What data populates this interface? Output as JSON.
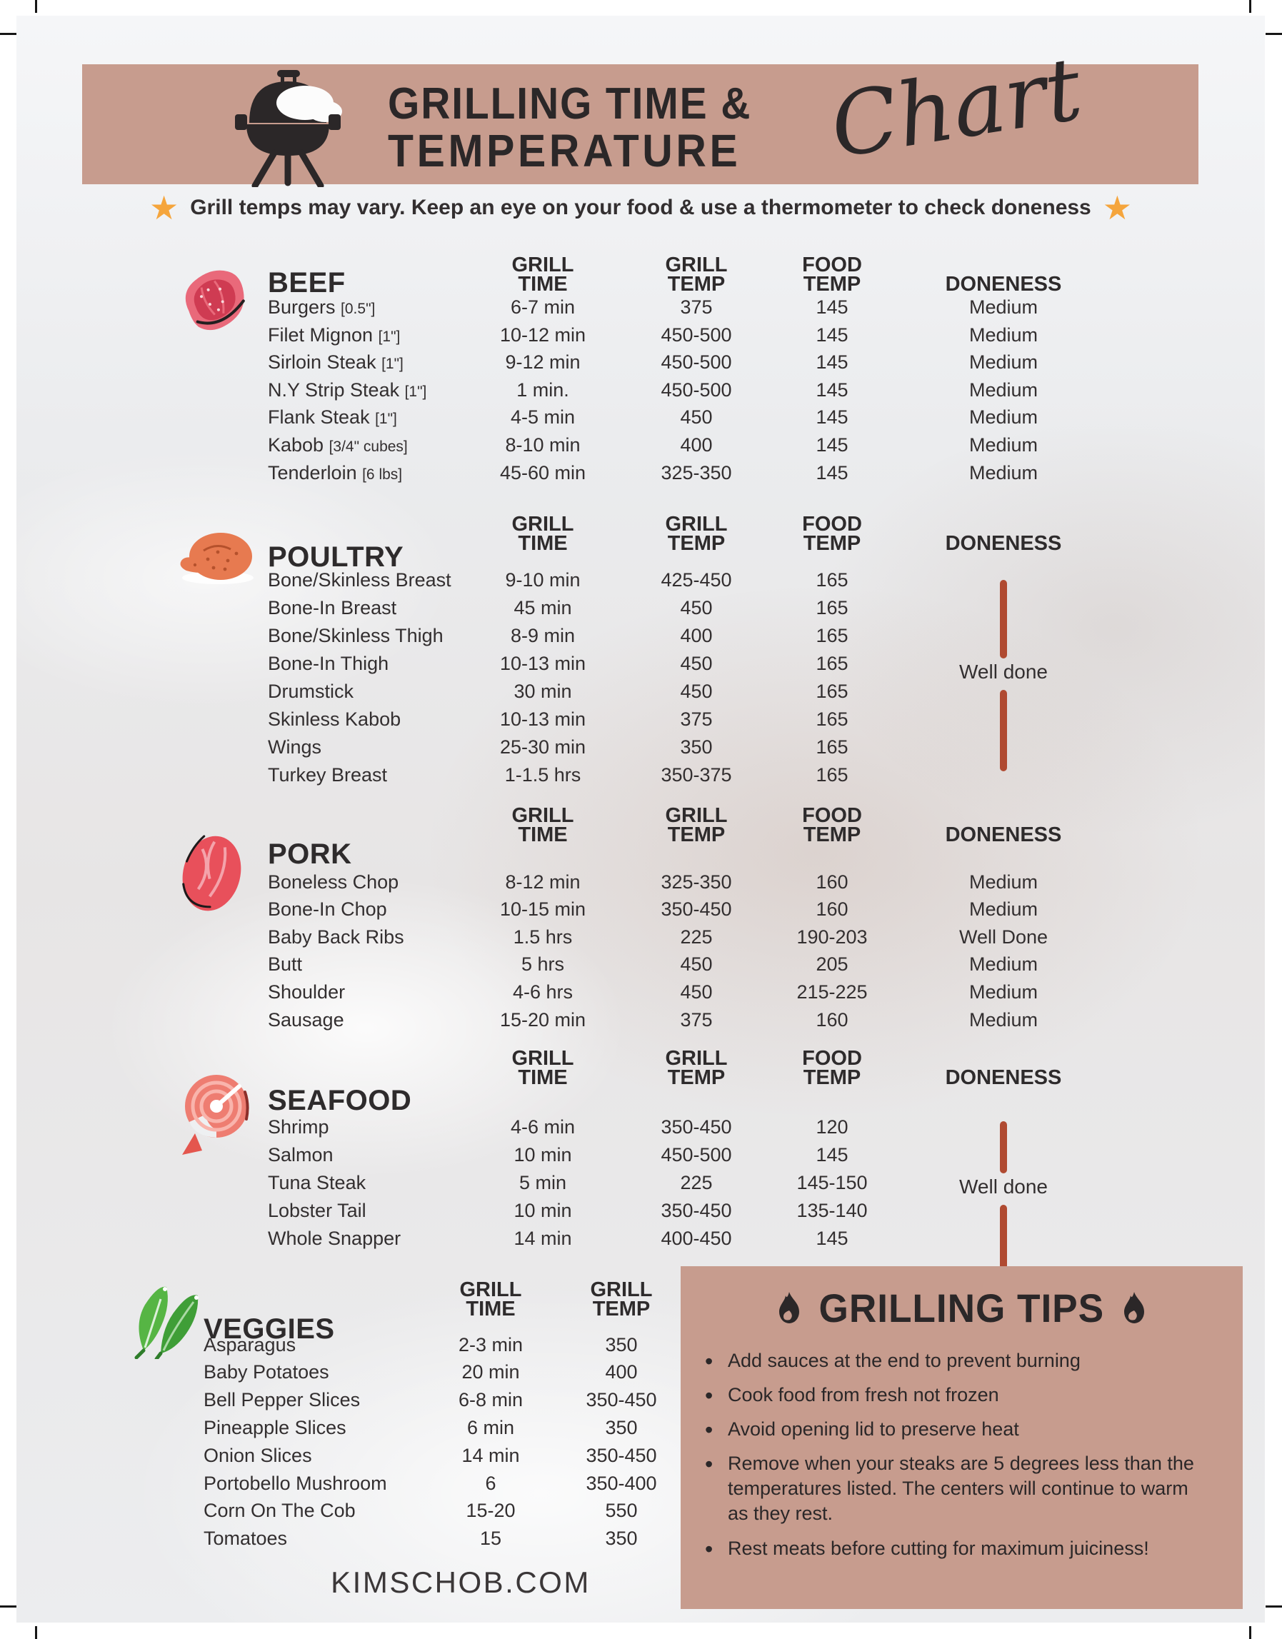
{
  "page": {
    "title_line1": "GRILLING TIME &",
    "title_line2": "TEMPERATURE",
    "title_script": "Chart",
    "notice": "Grill temps may vary. Keep an eye on your food & use a thermometer to check doneness",
    "footer": "KIMSCHOB.COM"
  },
  "sections": [
    {
      "id": "beef",
      "title": "BEEF",
      "icon": "beef-steak-icon",
      "columns": [
        "GRILL TIME",
        "GRILL TEMP",
        "FOOD TEMP",
        "DONENESS"
      ],
      "rows": [
        {
          "name": "Burgers",
          "size": "[0.5\"]",
          "values": [
            "6-7 min",
            "375",
            "145",
            "Medium"
          ]
        },
        {
          "name": "Filet Mignon",
          "size": "[1\"]",
          "values": [
            "10-12 min",
            "450-500",
            "145",
            "Medium"
          ]
        },
        {
          "name": "Sirloin Steak",
          "size": "[1\"]",
          "values": [
            "9-12 min",
            "450-500",
            "145",
            "Medium"
          ]
        },
        {
          "name": "N.Y Strip Steak",
          "size": "[1\"]",
          "values": [
            "1 min.",
            "450-500",
            "145",
            "Medium"
          ]
        },
        {
          "name": "Flank Steak",
          "size": "[1\"]",
          "values": [
            "4-5 min",
            "450",
            "145",
            "Medium"
          ]
        },
        {
          "name": "Kabob",
          "size": "[3/4\" cubes]",
          "values": [
            "8-10 min",
            "400",
            "145",
            "Medium"
          ]
        },
        {
          "name": "Tenderloin",
          "size": "[6 lbs]",
          "values": [
            "45-60 min",
            "325-350",
            "145",
            "Medium"
          ]
        }
      ]
    },
    {
      "id": "poultry",
      "title": "POULTRY",
      "icon": "poultry-icon",
      "columns": [
        "GRILL TIME",
        "GRILL TEMP",
        "FOOD TEMP",
        "DONENESS"
      ],
      "shared_doneness": "Well done",
      "rows": [
        {
          "name": "Bone/Skinless Breast",
          "values": [
            "9-10 min",
            "425-450",
            "165"
          ]
        },
        {
          "name": "Bone-In Breast",
          "values": [
            "45 min",
            "450",
            "165"
          ]
        },
        {
          "name": "Bone/Skinless Thigh",
          "values": [
            "8-9 min",
            "400",
            "165"
          ]
        },
        {
          "name": "Bone-In Thigh",
          "values": [
            "10-13 min",
            "450",
            "165"
          ]
        },
        {
          "name": "Drumstick",
          "values": [
            "30 min",
            "450",
            "165"
          ]
        },
        {
          "name": "Skinless Kabob",
          "values": [
            "10-13 min",
            "375",
            "165"
          ]
        },
        {
          "name": "Wings",
          "values": [
            "25-30 min",
            "350",
            "165"
          ]
        },
        {
          "name": "Turkey Breast",
          "values": [
            "1-1.5 hrs",
            "350-375",
            "165"
          ]
        }
      ]
    },
    {
      "id": "pork",
      "title": "PORK",
      "icon": "pork-icon",
      "columns": [
        "GRILL TIME",
        "GRILL TEMP",
        "FOOD TEMP",
        "DONENESS"
      ],
      "rows": [
        {
          "name": "Boneless Chop",
          "values": [
            "8-12 min",
            "325-350",
            "160",
            "Medium"
          ]
        },
        {
          "name": "Bone-In Chop",
          "values": [
            "10-15 min",
            "350-450",
            "160",
            "Medium"
          ]
        },
        {
          "name": "Baby Back Ribs",
          "values": [
            "1.5 hrs",
            "225",
            "190-203",
            "Well Done"
          ]
        },
        {
          "name": "Butt",
          "values": [
            "5 hrs",
            "450",
            "205",
            "Medium"
          ]
        },
        {
          "name": "Shoulder",
          "values": [
            "4-6 hrs",
            "450",
            "215-225",
            "Medium"
          ]
        },
        {
          "name": "Sausage",
          "values": [
            "15-20 min",
            "375",
            "160",
            "Medium"
          ]
        }
      ]
    },
    {
      "id": "seafood",
      "title": "SEAFOOD",
      "icon": "seafood-icon",
      "columns": [
        "GRILL TIME",
        "GRILL TEMP",
        "FOOD TEMP",
        "DONENESS"
      ],
      "shared_doneness": "Well done",
      "rows": [
        {
          "name": "Shrimp",
          "values": [
            "4-6 min",
            "350-450",
            "120"
          ]
        },
        {
          "name": "Salmon",
          "values": [
            "10 min",
            "450-500",
            "145"
          ]
        },
        {
          "name": "Tuna Steak",
          "values": [
            "5 min",
            "225",
            "145-150"
          ]
        },
        {
          "name": "Lobster Tail",
          "values": [
            "10 min",
            "350-450",
            "135-140"
          ]
        },
        {
          "name": "Whole Snapper",
          "values": [
            "14 min",
            "400-450",
            "145"
          ]
        }
      ]
    },
    {
      "id": "veggies",
      "title": "VEGGIES",
      "icon": "veggies-icon",
      "columns": [
        "GRILL TIME",
        "GRILL TEMP"
      ],
      "rows": [
        {
          "name": "Asparagus",
          "values": [
            "2-3 min",
            "350"
          ]
        },
        {
          "name": "Baby Potatoes",
          "values": [
            "20 min",
            "400"
          ]
        },
        {
          "name": "Bell Pepper Slices",
          "values": [
            "6-8 min",
            "350-450"
          ]
        },
        {
          "name": "Pineapple Slices",
          "values": [
            "6 min",
            "350"
          ]
        },
        {
          "name": "Onion Slices",
          "values": [
            "14 min",
            "350-450"
          ]
        },
        {
          "name": "Portobello Mushroom",
          "values": [
            "6",
            "350-400"
          ]
        },
        {
          "name": "Corn On The Cob",
          "values": [
            "15-20",
            "550"
          ]
        },
        {
          "name": "Tomatoes",
          "values": [
            "15",
            "350"
          ]
        }
      ]
    }
  ],
  "tips": {
    "title": "GRILLING TIPS",
    "items": [
      "Add sauces at the end to prevent burning",
      "Cook food from fresh not frozen",
      "Avoid opening lid  to preserve heat",
      "Remove when your steaks are 5 degrees less than the temperatures listed. The centers will continue to warm as they rest.",
      "Rest meats before cutting for maximum juiciness!"
    ]
  },
  "colors": {
    "banner": "#c79c8e",
    "accent_line": "#b04a31",
    "star": "#f5a53c",
    "ink": "#2e2b2c"
  }
}
